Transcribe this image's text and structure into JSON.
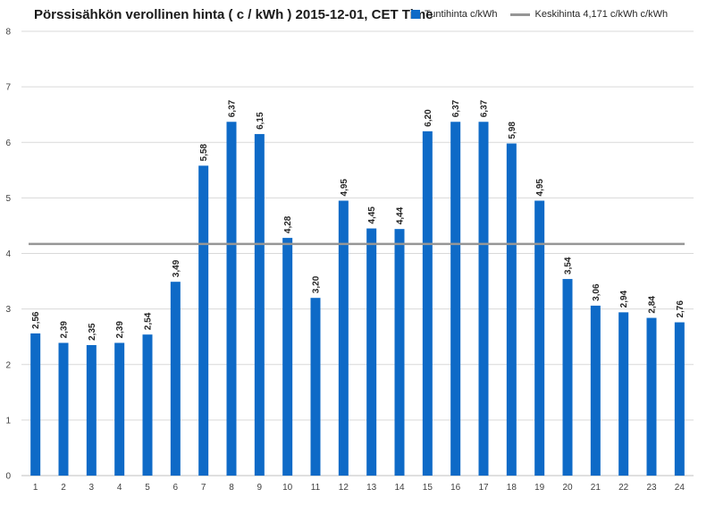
{
  "chart_data": {
    "type": "bar",
    "title": "Pörssisähkön verollinen hinta ( c / kWh ) 2015-12-01, CET Time",
    "xlabel": "",
    "ylabel": "",
    "categories": [
      "1",
      "2",
      "3",
      "4",
      "5",
      "6",
      "7",
      "8",
      "9",
      "10",
      "11",
      "12",
      "13",
      "14",
      "15",
      "16",
      "17",
      "18",
      "19",
      "20",
      "21",
      "22",
      "23",
      "24"
    ],
    "series": [
      {
        "name": "Tuntihinta c/kWh",
        "type": "bar",
        "color": "#0E6AC7",
        "values": [
          2.56,
          2.39,
          2.35,
          2.39,
          2.54,
          3.49,
          5.58,
          6.37,
          6.15,
          4.28,
          3.2,
          4.95,
          4.45,
          4.44,
          6.2,
          6.37,
          6.37,
          5.98,
          4.95,
          3.54,
          3.06,
          2.94,
          2.84,
          2.76
        ],
        "labels": [
          "2,56",
          "2,39",
          "2,35",
          "2,39",
          "2,54",
          "3,49",
          "5,58",
          "6,37",
          "6,15",
          "4,28",
          "3,20",
          "4,95",
          "4,45",
          "4,44",
          "6,20",
          "6,37",
          "6,37",
          "5,98",
          "4,95",
          "3,54",
          "3,06",
          "2,94",
          "2,84",
          "2,76"
        ]
      },
      {
        "name": "Keskihinta 4,171 c/kWh c/kWh",
        "type": "line",
        "color": "#969696",
        "value": 4.171
      }
    ],
    "ylim": [
      0,
      8
    ],
    "yticks": [
      "0",
      "1",
      "2",
      "3",
      "4",
      "5",
      "6",
      "7",
      "8"
    ],
    "grid": true,
    "legend_position": "top-right"
  }
}
